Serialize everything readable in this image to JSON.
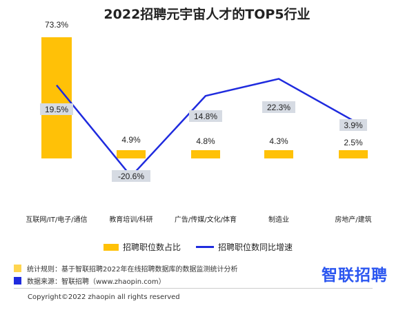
{
  "title": "2022招聘元宇宙人才的TOP5行业",
  "colors": {
    "bar": "#FFC107",
    "line": "#1F2BDE",
    "label_bg": "#D6DBE3",
    "footnote_1": "#FFD54F",
    "footnote_2": "#1F2BDE",
    "brand": "#2B56F0"
  },
  "chart_data": {
    "type": "bar",
    "categories": [
      "互联网/IT/电子/通信",
      "教育培训/科研",
      "广告/传媒/文化/体育",
      "制造业",
      "房地产/建筑"
    ],
    "series": [
      {
        "name": "招聘职位数占比",
        "type": "bar",
        "values": [
          73.3,
          4.9,
          4.8,
          4.3,
          2.5
        ],
        "labels": [
          "73.3%",
          "4.9%",
          "4.8%",
          "4.3%",
          "2.5%"
        ]
      },
      {
        "name": "招聘职位数同比增速",
        "type": "line",
        "values": [
          19.5,
          -20.6,
          14.8,
          22.3,
          3.9
        ],
        "labels": [
          "19.5%",
          "-20.6%",
          "14.8%",
          "22.3%",
          "3.9%"
        ]
      }
    ],
    "grid": false,
    "legend_position": "bottom"
  },
  "footnotes": {
    "rule": "统计规则：基于智联招聘2022年在线招聘数据库的数据监测统计分析",
    "source": "数据来源：智联招聘（www.zhaopin.com）"
  },
  "brand": "智联招聘",
  "copyright": "Copyright©2022 zhaopin all rights reserved"
}
